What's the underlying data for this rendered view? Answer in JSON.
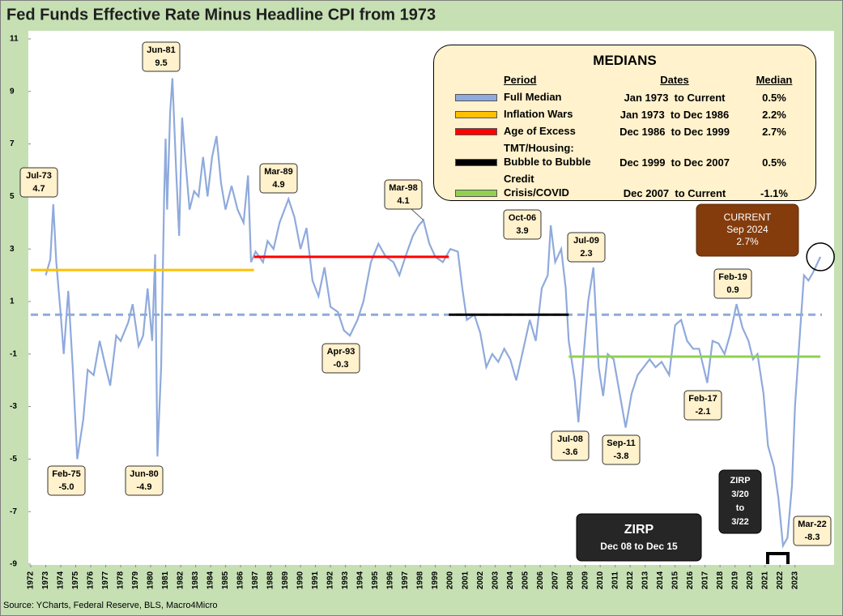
{
  "chart_data": {
    "type": "line",
    "title": "Fed Funds Effective Rate Minus Headline CPI from 1973",
    "source": "Source: YCharts, Federal Reserve, BLS, Macro4Micro",
    "xlim": [
      1972,
      2024.8
    ],
    "xticks": [
      1972,
      1973,
      1974,
      1975,
      1976,
      1977,
      1978,
      1979,
      1980,
      1981,
      1982,
      1983,
      1984,
      1985,
      1986,
      1987,
      1988,
      1989,
      1990,
      1991,
      1992,
      1993,
      1994,
      1995,
      1996,
      1997,
      1998,
      1999,
      2000,
      2001,
      2002,
      2003,
      2004,
      2005,
      2006,
      2007,
      2008,
      2009,
      2010,
      2011,
      2012,
      2013,
      2014,
      2015,
      2016,
      2017,
      2018,
      2019,
      2020,
      2021,
      2022,
      2023
    ],
    "ylim": [
      -9,
      11
    ],
    "yticks": [
      -9,
      -7,
      -5,
      -3,
      -1,
      1,
      3,
      5,
      7,
      9,
      11
    ],
    "legend": {
      "title": "MEDIANS",
      "headers": [
        "Period",
        "Dates",
        "Median"
      ]
    },
    "series": [
      {
        "color": "#8faadc",
        "x": [
          1973.0,
          1973.3,
          1973.5,
          1973.7,
          1974.0,
          1974.2,
          1974.5,
          1974.8,
          1975.1,
          1975.5,
          1975.8,
          1976.2,
          1976.6,
          1977.0,
          1977.3,
          1977.7,
          1978.0,
          1978.5,
          1978.8,
          1979.2,
          1979.5,
          1979.8,
          1980.1,
          1980.3,
          1980.45,
          1980.7,
          1980.9,
          1981.0,
          1981.1,
          1981.3,
          1981.45,
          1981.7,
          1981.9,
          1982.1,
          1982.3,
          1982.6,
          1982.9,
          1983.2,
          1983.5,
          1983.8,
          1984.1,
          1984.4,
          1984.7,
          1985.0,
          1985.4,
          1985.8,
          1986.2,
          1986.5,
          1986.7,
          1987.0,
          1987.5,
          1987.8,
          1988.2,
          1988.6,
          1989.2,
          1989.6,
          1990.0,
          1990.4,
          1990.8,
          1991.2,
          1991.6,
          1992.0,
          1992.5,
          1992.9,
          1993.3,
          1993.8,
          1994.2,
          1994.7,
          1995.2,
          1995.7,
          1996.2,
          1996.6,
          1997.0,
          1997.5,
          1997.9,
          1998.2,
          1998.6,
          1999.0,
          1999.5,
          2000.0,
          2000.5,
          2000.8,
          2001.1,
          2001.6,
          2002.0,
          2002.4,
          2002.8,
          2003.2,
          2003.6,
          2004.0,
          2004.4,
          2004.8,
          2005.3,
          2005.7,
          2006.1,
          2006.5,
          2006.7,
          2007.0,
          2007.4,
          2007.7,
          2007.9,
          2008.3,
          2008.55,
          2008.9,
          2009.2,
          2009.55,
          2009.9,
          2010.2,
          2010.5,
          2010.9,
          2011.3,
          2011.7,
          2012.1,
          2012.5,
          2012.9,
          2013.3,
          2013.7,
          2014.1,
          2014.6,
          2015.0,
          2015.4,
          2015.8,
          2016.2,
          2016.6,
          2017.15,
          2017.5,
          2017.9,
          2018.3,
          2018.7,
          2019.1,
          2019.5,
          2019.9,
          2020.2,
          2020.5,
          2020.9,
          2021.2,
          2021.6,
          2021.9,
          2022.2,
          2022.5,
          2022.8,
          2023.0,
          2023.3,
          2023.6,
          2023.9,
          2024.2,
          2024.7
        ],
        "values": [
          2.0,
          2.6,
          4.7,
          2.5,
          0.5,
          -1.0,
          1.4,
          -1.5,
          -5.0,
          -3.5,
          -1.6,
          -1.8,
          -0.5,
          -1.5,
          -2.2,
          -0.3,
          -0.5,
          0.2,
          0.9,
          -0.7,
          -0.3,
          1.5,
          -0.5,
          2.8,
          -4.9,
          -1.5,
          5.0,
          7.2,
          4.5,
          8.2,
          9.5,
          6.0,
          3.5,
          8.0,
          6.5,
          4.5,
          5.2,
          5.0,
          6.5,
          5.0,
          6.5,
          7.3,
          5.5,
          4.5,
          5.4,
          4.5,
          4.0,
          5.8,
          2.5,
          2.9,
          2.5,
          3.3,
          3.0,
          4.0,
          4.9,
          4.2,
          3.0,
          3.8,
          1.8,
          1.2,
          2.3,
          0.8,
          0.6,
          -0.1,
          -0.3,
          0.3,
          1.0,
          2.5,
          3.2,
          2.7,
          2.5,
          2.0,
          2.7,
          3.5,
          3.9,
          4.1,
          3.2,
          2.7,
          2.5,
          3.0,
          2.9,
          1.5,
          0.3,
          0.5,
          -0.2,
          -1.5,
          -1.0,
          -1.3,
          -0.8,
          -1.2,
          -2.0,
          -1.0,
          0.3,
          -0.5,
          1.5,
          2.0,
          3.9,
          2.5,
          3.0,
          1.5,
          -0.5,
          -2.0,
          -3.6,
          -1.0,
          1.0,
          2.3,
          -1.5,
          -2.6,
          -1.0,
          -1.2,
          -2.5,
          -3.8,
          -2.5,
          -1.8,
          -1.5,
          -1.2,
          -1.5,
          -1.3,
          -1.8,
          0.1,
          0.3,
          -0.5,
          -0.8,
          -0.8,
          -2.1,
          -0.5,
          -0.6,
          -1.0,
          -0.2,
          0.9,
          0.0,
          -0.5,
          -1.2,
          -1.0,
          -2.5,
          -4.5,
          -5.3,
          -6.5,
          -8.3,
          -8.0,
          -6.0,
          -3.0,
          -0.5,
          2.0,
          1.8,
          2.1,
          2.7
        ]
      },
      {
        "name": "Full Median",
        "dates": "Jan 1973  to Current",
        "median_label": "0.5%",
        "color": "#8faadc",
        "dashed": true,
        "x": [
          1972,
          2024.8
        ],
        "values": [
          0.5,
          0.5
        ]
      },
      {
        "name": "Inflation Wars",
        "dates": "Jan 1973  to Dec 1986",
        "median_label": "2.2%",
        "color": "#ffc000",
        "x": [
          1972,
          1986.9
        ],
        "values": [
          2.2,
          2.2
        ]
      },
      {
        "name": "Age of Excess",
        "dates": "Dec 1986  to Dec 1999",
        "median_label": "2.7%",
        "color": "#ff0000",
        "x": [
          1986.9,
          1999.9
        ],
        "values": [
          2.7,
          2.7
        ]
      },
      {
        "name": "TMT/Housing: Bubble to Bubble",
        "dates": "Dec 1999  to Dec 2007",
        "median_label": "0.5%",
        "color": "#000000",
        "x": [
          1999.9,
          2007.9
        ],
        "values": [
          0.5,
          0.5
        ]
      },
      {
        "name": "Credit Crisis/COVID",
        "dates": "Dec 2007  to Current",
        "median_label": "-1.1%",
        "color": "#92d050",
        "x": [
          2007.9,
          2024.7
        ],
        "values": [
          -1.1,
          -1.1
        ]
      }
    ],
    "annotations": [
      {
        "label": "Jul-73",
        "x": 1973.5,
        "value": 4.7
      },
      {
        "label": "Feb-75",
        "x": 1975.1,
        "value": -5.0,
        "value_label": "-5.0"
      },
      {
        "label": "Jun-80",
        "x": 1980.45,
        "value": -4.9
      },
      {
        "label": "Jun-81",
        "x": 1981.45,
        "value": 9.5
      },
      {
        "label": "Mar-89",
        "x": 1989.2,
        "value": 4.9
      },
      {
        "label": "Apr-93",
        "x": 1993.3,
        "value": -0.3
      },
      {
        "label": "Mar-98",
        "x": 1998.2,
        "value": 4.1
      },
      {
        "label": "Oct-06",
        "x": 2006.7,
        "value": 3.9
      },
      {
        "label": "Jul-08",
        "x": 2008.55,
        "value": -3.6
      },
      {
        "label": "Jul-09",
        "x": 2009.55,
        "value": 2.3
      },
      {
        "label": "Sep-11",
        "x": 2011.7,
        "value": -3.8
      },
      {
        "label": "Feb-17",
        "x": 2017.15,
        "value": -2.1
      },
      {
        "label": "Feb-19",
        "x": 2019.1,
        "value": 0.9
      },
      {
        "label": "Mar-22",
        "x": 2022.2,
        "value": -8.3
      }
    ],
    "current": {
      "lines": [
        "CURRENT",
        "Sep 2024",
        "2.7%"
      ]
    },
    "zirp_boxes": [
      {
        "lines": [
          "ZIRP",
          "Dec 08 to Dec 15"
        ]
      },
      {
        "lines": [
          "ZIRP",
          "3/20",
          "to",
          "3/22"
        ]
      }
    ]
  }
}
